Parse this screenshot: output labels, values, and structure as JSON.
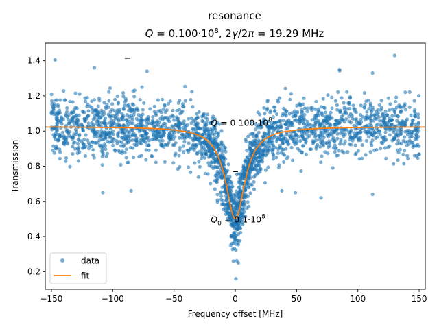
{
  "chart_data": {
    "type": "scatter",
    "title": "resonance",
    "subtitle": {
      "q_symbol": "Q",
      "q_text": " = 0.100·10",
      "q_exp": "8",
      "sep": ", 2",
      "gamma": "γ",
      "slash": "/2",
      "pi": "π",
      "rest": " = 19.29 MHz"
    },
    "xlabel": "Frequency offset [MHz]",
    "ylabel": "Transmission",
    "xlim": [
      -155,
      155
    ],
    "ylim": [
      0.1,
      1.5
    ],
    "x_ticks": [
      -150,
      -100,
      -50,
      0,
      50,
      100,
      150
    ],
    "x_tick_labels": [
      "−150",
      "−100",
      "−50",
      "0",
      "50",
      "100",
      "150"
    ],
    "y_ticks": [
      0.2,
      0.4,
      0.6,
      0.8,
      1.0,
      1.2,
      1.4
    ],
    "y_tick_labels": [
      "0.2",
      "0.4",
      "0.6",
      "0.8",
      "1.0",
      "1.2",
      "1.4"
    ],
    "grid": false,
    "legend_position": "lower-left",
    "series": [
      {
        "name": "data",
        "kind": "scatter",
        "color": "#1f77b4",
        "noise_sd": 0.085,
        "outliers": [
          {
            "x": -147,
            "y": 1.405
          },
          {
            "x": 130,
            "y": 1.43
          },
          {
            "x": -115,
            "y": 1.36
          },
          {
            "x": -72,
            "y": 1.34
          },
          {
            "x": 85,
            "y": 1.35
          },
          {
            "x": 112,
            "y": 1.33
          },
          {
            "x": -108,
            "y": 0.65
          },
          {
            "x": 70,
            "y": 0.62
          },
          {
            "x": 38,
            "y": 0.66
          },
          {
            "x": -85,
            "y": 0.66
          },
          {
            "x": 0.5,
            "y": 0.16
          },
          {
            "x": -1.5,
            "y": 0.26
          },
          {
            "x": 2.5,
            "y": 0.25
          },
          {
            "x": 112,
            "y": 0.64
          }
        ]
      },
      {
        "name": "fit",
        "kind": "line",
        "color": "#ff7f0e",
        "model": "lorentzian_dip",
        "baseline": 1.025,
        "min_value": 0.5,
        "fwhm_mhz": 19.29,
        "center_mhz": 0
      }
    ],
    "annotations": [
      {
        "text": " = 0.100·10",
        "symbol": "Q",
        "sub": "",
        "exp": "8",
        "x": -20,
        "y": 1.03
      },
      {
        "text": " = 0.1·10",
        "symbol": "Q",
        "sub": "0",
        "exp": "8",
        "x": -20,
        "y": 0.48
      }
    ],
    "markers": [
      {
        "x": -88,
        "y": 1.415,
        "shape": "hline"
      },
      {
        "x": 0,
        "y": 0.77,
        "shape": "hline"
      }
    ]
  }
}
